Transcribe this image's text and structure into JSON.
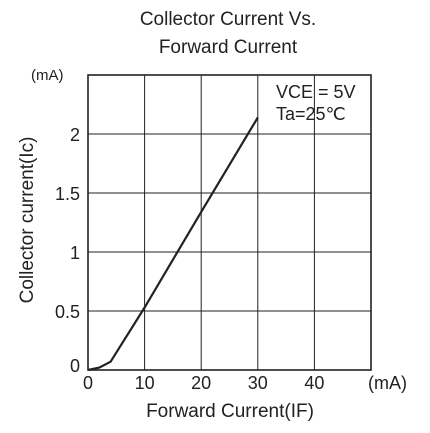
{
  "chart_data": {
    "type": "line",
    "title_line1": "Collector Current Vs.",
    "title_line2": "Forward Current",
    "xlabel": "Forward Current(IF)",
    "ylabel": "Collector current(Ic)",
    "x_unit": "(mA)",
    "y_unit": "(mA)",
    "xlim": [
      0,
      50
    ],
    "ylim": [
      0,
      2.5
    ],
    "x_ticks": [
      0,
      10,
      20,
      30,
      40
    ],
    "x_tick_labels": [
      "0",
      "10",
      "20",
      "30",
      "40"
    ],
    "y_ticks": [
      0,
      0.5,
      1,
      1.5,
      2
    ],
    "y_tick_labels": [
      "0",
      "0.5",
      "1",
      "1.5",
      "2"
    ],
    "grid": true,
    "legend_position": "top-right",
    "annotations": [
      "VCE = 5V",
      "Ta=25℃"
    ],
    "series": [
      {
        "x": [
          0,
          2,
          4,
          10,
          20,
          30
        ],
        "y": [
          0,
          0.02,
          0.07,
          0.53,
          1.34,
          2.14
        ]
      }
    ]
  }
}
